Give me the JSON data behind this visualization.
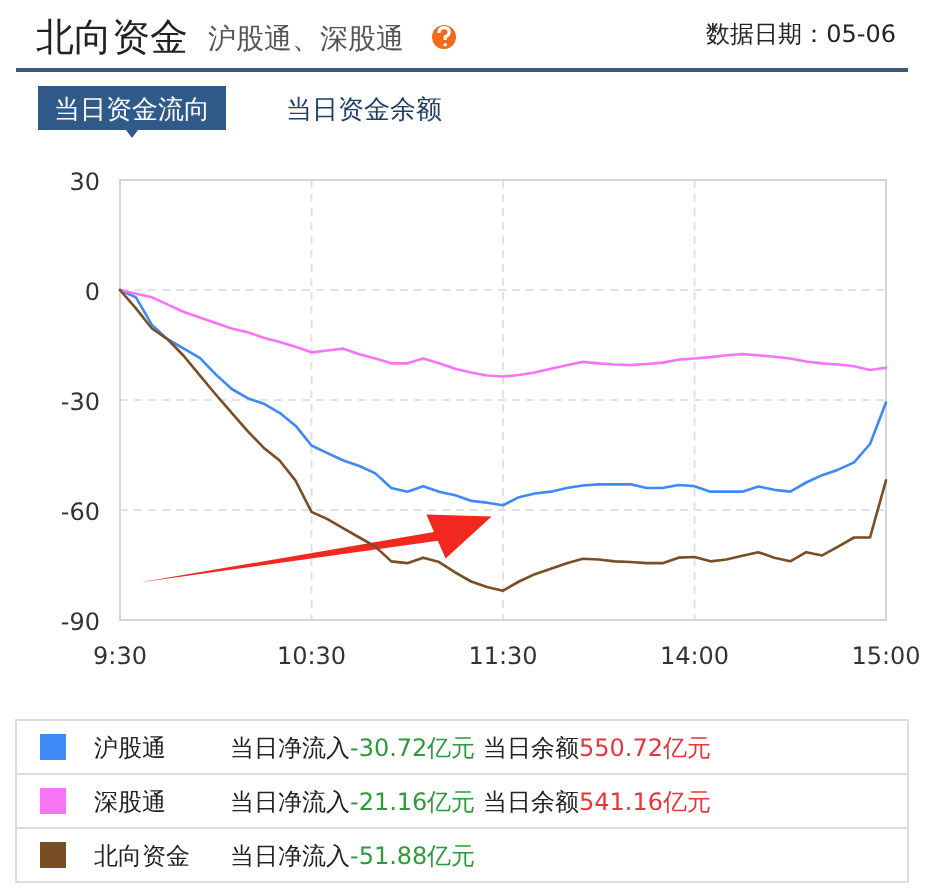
{
  "chart_data": {
    "type": "line",
    "title": "北向资金",
    "subtitle": "沪股通、深股通",
    "annotations": [
      "数据日期：05-06",
      "当日资金流向",
      "当日资金余额",
      "当日净流入-30.72亿元 当日余额550.72亿元",
      "当日净流入-21.16亿元 当日余额541.16亿元",
      "当日净流入-51.88亿元"
    ],
    "categories": [
      "9:30",
      null,
      null,
      null,
      null,
      null,
      null,
      null,
      null,
      null,
      null,
      null,
      "10:30",
      null,
      null,
      null,
      null,
      null,
      null,
      null,
      null,
      null,
      null,
      null,
      "11:30",
      null,
      null,
      null,
      null,
      null,
      null,
      null,
      null,
      null,
      null,
      null,
      "14:00",
      null,
      null,
      null,
      null,
      null,
      null,
      null,
      null,
      null,
      null,
      null,
      "15:00"
    ],
    "ylim": [
      -90,
      30
    ],
    "yticks": [
      30,
      0,
      -30,
      -60,
      -90
    ],
    "grid": true,
    "legend": "bottom",
    "series": [
      {
        "name": "沪股通",
        "color": "#3d8af7",
        "values": [
          0,
          -2,
          -9.5,
          -13.5,
          -16,
          -18.5,
          -23,
          -27,
          -29.5,
          -31,
          -33.5,
          -37,
          -42.4,
          -44.5,
          -46.5,
          -48,
          -50,
          -54,
          -55,
          -53.5,
          -55,
          -56,
          -57.5,
          -58,
          -58.7,
          -56.5,
          -55.5,
          -55,
          -54,
          -53.3,
          -53,
          -53,
          -53,
          -54,
          -54,
          -53.2,
          -53.5,
          -55,
          -55,
          -55,
          -53.6,
          -54.5,
          -55,
          -52.5,
          -50.5,
          -49,
          -47,
          -42,
          -30.7
        ]
      },
      {
        "name": "深股通",
        "color": "#f774f4",
        "values": [
          0,
          -1,
          -2,
          -4,
          -6,
          -7.5,
          -9,
          -10.5,
          -11.5,
          -13,
          -14.2,
          -15.5,
          -17,
          -16.5,
          -16,
          -17.5,
          -18.7,
          -20,
          -20,
          -18.7,
          -20,
          -21.5,
          -22.5,
          -23.3,
          -23.6,
          -23.2,
          -22.5,
          -21.5,
          -20.5,
          -19.6,
          -20,
          -20.3,
          -20.5,
          -20.2,
          -19.8,
          -19,
          -18.7,
          -18.3,
          -17.8,
          -17.5,
          -17.8,
          -18.2,
          -18.7,
          -19.5,
          -20,
          -20.3,
          -20.8,
          -21.8,
          -21.2
        ]
      },
      {
        "name": "北向资金",
        "color": "#7a4e24",
        "values": [
          0,
          -5,
          -10.5,
          -13.5,
          -18,
          -23.3,
          -28.5,
          -33.5,
          -38.5,
          -43,
          -46.5,
          -52,
          -60.5,
          -62.5,
          -65,
          -67.5,
          -70,
          -74,
          -74.5,
          -73,
          -74.2,
          -77,
          -79.5,
          -81,
          -82,
          -79.5,
          -77.5,
          -76,
          -74.5,
          -73.3,
          -73.5,
          -74,
          -74.2,
          -74.5,
          -74.5,
          -73,
          -72.8,
          -74,
          -73.5,
          -72.5,
          -71.5,
          -73,
          -74,
          -71.5,
          -72.4,
          -70,
          -67.5,
          -67.5,
          -51.9
        ]
      }
    ]
  }
}
